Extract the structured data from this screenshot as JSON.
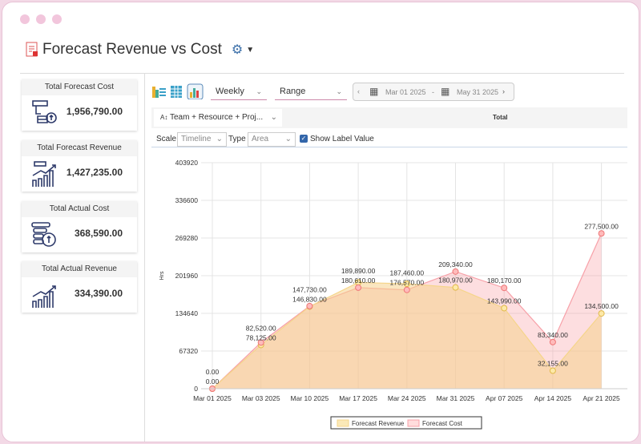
{
  "page": {
    "title": "Forecast Revenue vs Cost"
  },
  "cards": [
    {
      "label": "Total Forecast Cost",
      "value": "1,956,790.00",
      "icon": "forecast-cost-icon"
    },
    {
      "label": "Total Forecast Revenue",
      "value": "1,427,235.00",
      "icon": "forecast-revenue-icon"
    },
    {
      "label": "Total Actual Cost",
      "value": "368,590.00",
      "icon": "actual-cost-icon"
    },
    {
      "label": "Total Actual Revenue",
      "value": "334,390.00",
      "icon": "actual-revenue-icon"
    }
  ],
  "toolbar": {
    "period": "Weekly",
    "range": "Range",
    "start_date": "Mar 01 2025",
    "separator": "-",
    "end_date": "May 31 2025",
    "group_by": "Team + Resource + Proj...",
    "total_header": "Total",
    "scale_label": "Scale",
    "scale_value": "Timeline",
    "type_label": "Type",
    "type_value": "Area",
    "show_label_value": "Show Label Value",
    "show_label_checked": true
  },
  "chart_data": {
    "type": "area",
    "ylabel": "Hrs",
    "ylim": [
      0,
      403920
    ],
    "yticks": [
      "0",
      "67320",
      "134640",
      "201960",
      "269280",
      "336600",
      "403920"
    ],
    "categories": [
      "Mar 01 2025",
      "Mar 03 2025",
      "Mar 10 2025",
      "Mar 17 2025",
      "Mar 24 2025",
      "Mar 31 2025",
      "Apr 07 2025",
      "Apr 14 2025",
      "Apr 21 2025"
    ],
    "grid": true,
    "legend_position": "bottom",
    "series": [
      {
        "name": "Forecast Revenue",
        "color": "#f5d58a",
        "values": [
          0,
          78125,
          146830,
          189890,
          187460,
          180970,
          143990,
          32155,
          134500
        ],
        "labels": [
          "0.00",
          "78,125.00",
          "146,830.00",
          "189,890.00",
          "187,460.00",
          "180,970.00",
          "143,990.00",
          "32,155.00",
          "134,500.00"
        ]
      },
      {
        "name": "Forecast Cost",
        "color": "#f7a0a8",
        "values": [
          0,
          82520,
          147730,
          180610,
          176570,
          209340,
          180170,
          83340,
          277500
        ],
        "labels": [
          "0.00",
          "82,520.00",
          "147,730.00",
          "180,610.00",
          "176,570.00",
          "209,340.00",
          "180,170.00",
          "83,340.00",
          "277,500.00"
        ]
      }
    ]
  }
}
